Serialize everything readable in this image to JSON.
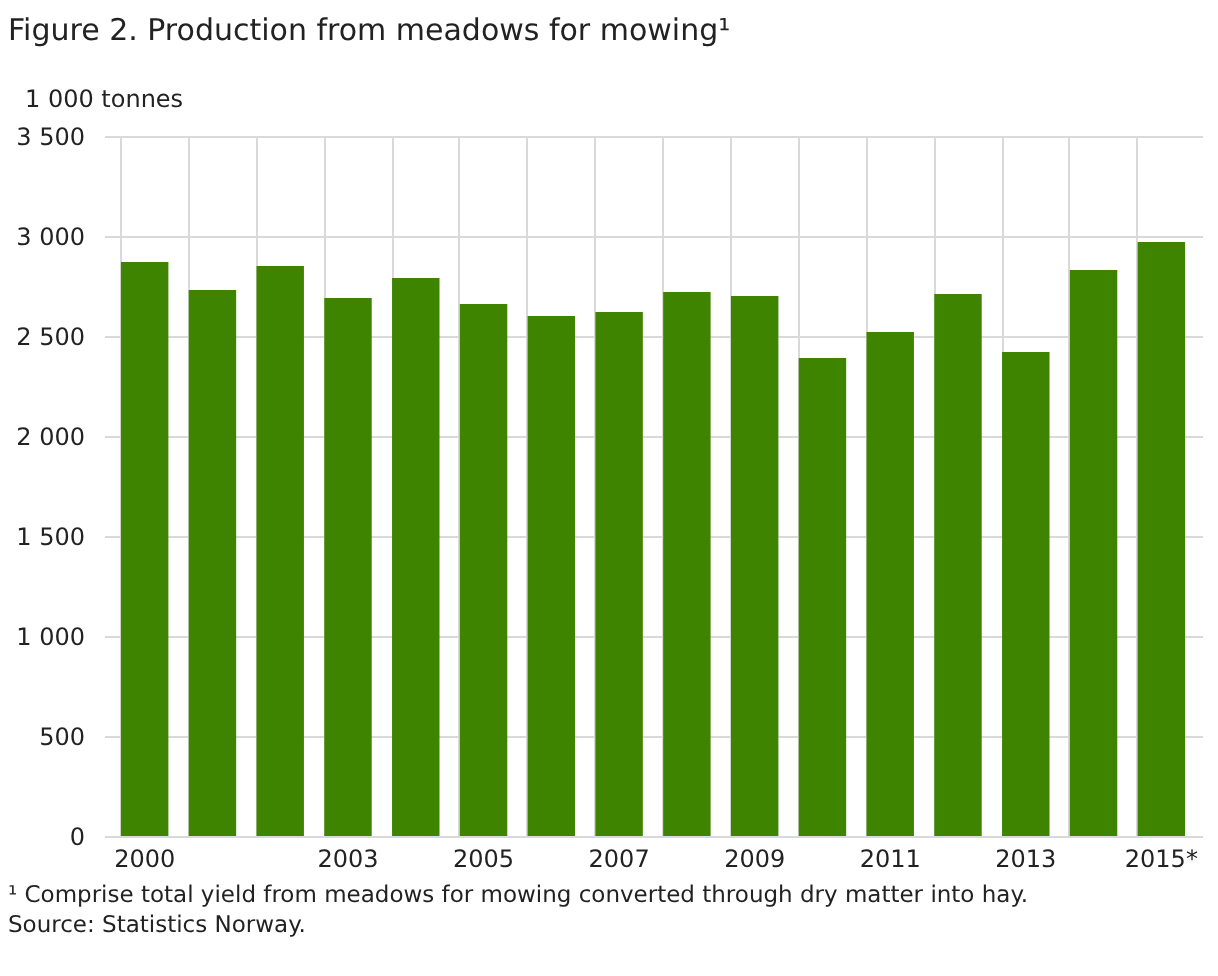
{
  "chart_data": {
    "type": "bar",
    "title": "Figure 2. Production from meadows for mowing¹",
    "ylabel": "1 000 tonnes",
    "categories": [
      "2000",
      null,
      null,
      "2003",
      null,
      "2005",
      null,
      "2007",
      null,
      "2009",
      null,
      "2011",
      null,
      "2013",
      null,
      "2015*"
    ],
    "values": [
      2870,
      2730,
      2850,
      2690,
      2790,
      2660,
      2600,
      2620,
      2720,
      2700,
      2390,
      2520,
      2710,
      2420,
      2830,
      2970
    ],
    "color": "#3f8400",
    "ylim": [
      0,
      3500
    ],
    "yticks": [
      0,
      {
        "value": 500,
        "label": "500"
      },
      {
        "value": 1000,
        "label": "1 000"
      },
      {
        "value": 1500,
        "label": "1 500"
      },
      {
        "value": 2000,
        "label": "2 000"
      },
      {
        "value": 2500,
        "label": "2 500"
      },
      {
        "value": 3000,
        "label": "3 000"
      },
      {
        "value": 3500,
        "label": "3 500"
      }
    ],
    "grid": true,
    "annotations": [
      "¹ Comprise total yield from meadows for mowing converted through dry matter into hay.",
      "Source: Statistics Norway."
    ]
  }
}
